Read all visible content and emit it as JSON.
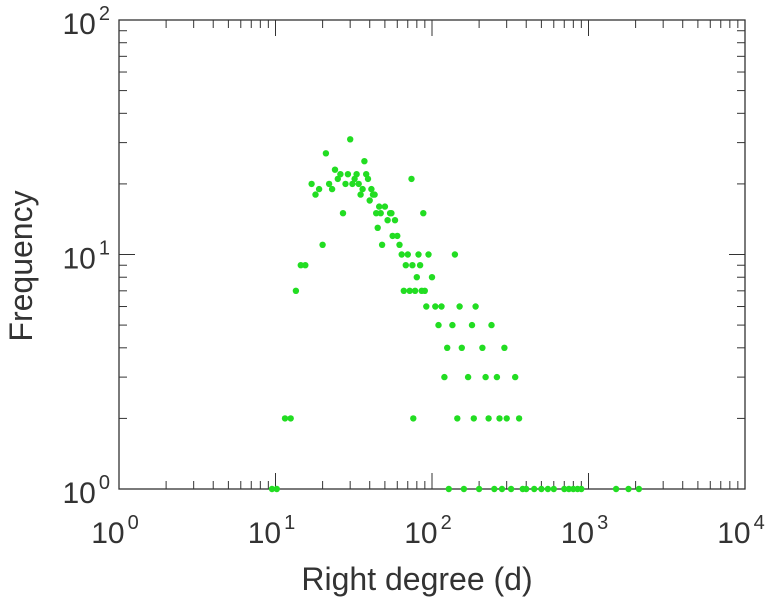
{
  "chart_data": {
    "type": "scatter",
    "xlabel": "Right degree (d)",
    "ylabel": "Frequency",
    "xscale": "log",
    "yscale": "log",
    "xlim": [
      1,
      10000
    ],
    "ylim": [
      1,
      100
    ],
    "grid": false,
    "x_ticks": [
      {
        "base": "10",
        "exp": "0",
        "value": 1
      },
      {
        "base": "10",
        "exp": "1",
        "value": 10
      },
      {
        "base": "10",
        "exp": "2",
        "value": 100
      },
      {
        "base": "10",
        "exp": "3",
        "value": 1000
      },
      {
        "base": "10",
        "exp": "4",
        "value": 10000
      }
    ],
    "y_ticks": [
      {
        "base": "10",
        "exp": "0",
        "value": 1
      },
      {
        "base": "10",
        "exp": "1",
        "value": 10
      },
      {
        "base": "10",
        "exp": "2",
        "value": 100
      }
    ],
    "colors": {
      "points": "#22dd22",
      "axes": "#333333"
    },
    "points": [
      [
        9.5,
        1
      ],
      [
        10.2,
        1
      ],
      [
        11.5,
        2
      ],
      [
        12.5,
        2
      ],
      [
        13.5,
        7
      ],
      [
        14.5,
        9
      ],
      [
        15.5,
        9
      ],
      [
        17,
        20
      ],
      [
        18,
        18
      ],
      [
        19,
        19
      ],
      [
        20,
        11
      ],
      [
        21,
        27
      ],
      [
        22,
        20
      ],
      [
        23,
        19
      ],
      [
        24,
        23
      ],
      [
        25,
        21
      ],
      [
        26,
        22
      ],
      [
        27,
        15
      ],
      [
        28,
        20
      ],
      [
        29,
        22
      ],
      [
        30,
        31
      ],
      [
        31,
        20
      ],
      [
        32,
        21
      ],
      [
        33,
        22
      ],
      [
        34,
        20
      ],
      [
        35,
        18
      ],
      [
        36,
        19
      ],
      [
        37,
        25
      ],
      [
        38,
        22
      ],
      [
        39,
        21
      ],
      [
        40,
        17
      ],
      [
        41,
        19
      ],
      [
        42,
        18
      ],
      [
        43,
        18
      ],
      [
        44,
        15
      ],
      [
        45,
        13
      ],
      [
        46,
        16
      ],
      [
        47,
        15
      ],
      [
        48,
        11
      ],
      [
        50,
        16
      ],
      [
        52,
        14
      ],
      [
        54,
        15
      ],
      [
        55,
        15
      ],
      [
        56,
        12
      ],
      [
        58,
        14
      ],
      [
        60,
        12
      ],
      [
        62,
        11
      ],
      [
        64,
        10
      ],
      [
        66,
        7
      ],
      [
        68,
        9
      ],
      [
        70,
        10
      ],
      [
        72,
        7
      ],
      [
        74,
        21
      ],
      [
        75,
        9
      ],
      [
        76,
        2
      ],
      [
        78,
        7
      ],
      [
        80,
        8
      ],
      [
        82,
        10
      ],
      [
        84,
        9
      ],
      [
        86,
        7
      ],
      [
        88,
        15
      ],
      [
        90,
        7
      ],
      [
        92,
        6
      ],
      [
        95,
        10
      ],
      [
        100,
        8
      ],
      [
        105,
        6
      ],
      [
        110,
        5
      ],
      [
        115,
        6
      ],
      [
        120,
        3
      ],
      [
        125,
        4
      ],
      [
        128,
        1
      ],
      [
        135,
        5
      ],
      [
        140,
        10
      ],
      [
        145,
        2
      ],
      [
        150,
        6
      ],
      [
        155,
        4
      ],
      [
        160,
        1
      ],
      [
        170,
        3
      ],
      [
        180,
        5
      ],
      [
        185,
        2
      ],
      [
        190,
        6
      ],
      [
        200,
        1
      ],
      [
        210,
        4
      ],
      [
        220,
        3
      ],
      [
        230,
        2
      ],
      [
        240,
        5
      ],
      [
        250,
        1
      ],
      [
        260,
        3
      ],
      [
        270,
        2
      ],
      [
        280,
        1
      ],
      [
        290,
        4
      ],
      [
        300,
        2
      ],
      [
        320,
        1
      ],
      [
        340,
        3
      ],
      [
        360,
        2
      ],
      [
        380,
        1
      ],
      [
        400,
        1
      ],
      [
        450,
        1
      ],
      [
        500,
        1
      ],
      [
        550,
        1
      ],
      [
        600,
        1
      ],
      [
        700,
        1
      ],
      [
        750,
        1
      ],
      [
        800,
        1
      ],
      [
        850,
        1
      ],
      [
        900,
        1
      ],
      [
        1500,
        1
      ],
      [
        1800,
        1
      ],
      [
        2100,
        1
      ]
    ]
  }
}
